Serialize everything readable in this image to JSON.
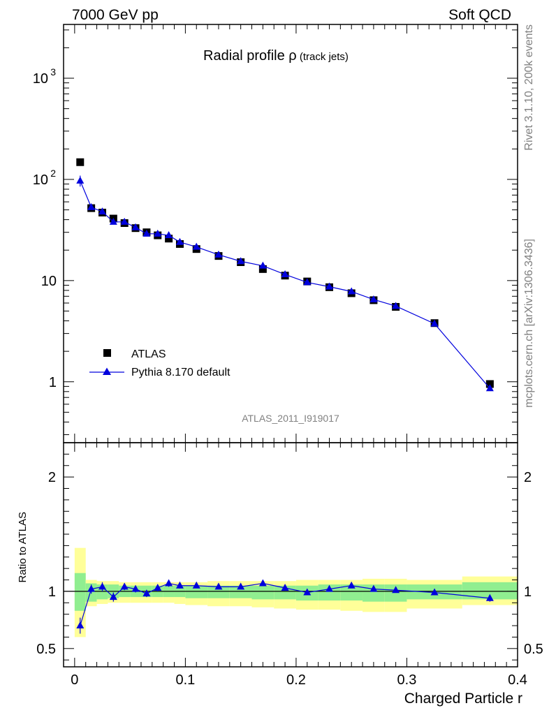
{
  "header": {
    "left": "7000 GeV pp",
    "right": "Soft QCD"
  },
  "side_labels": {
    "rivet": "Rivet 3.1.10,  200k events",
    "mcplots": "mcplots.cern.ch [arXiv:1306.3436]"
  },
  "chart_data": {
    "type": "scatter",
    "title_main": "Radial profile ",
    "title_rho": "ρ",
    "title_sub": " (track jets)",
    "analysis_id": "ATLAS_2011_I919017",
    "xlabel": "Charged Particle r",
    "ylabel_ratio": "Ratio to ATLAS",
    "x_ticks": [
      "0",
      "0.1",
      "0.2",
      "0.3",
      "0.4"
    ],
    "xlim": [
      -0.01,
      0.4
    ],
    "top": {
      "yscale": "log",
      "ylim": [
        0.25,
        3400
      ],
      "y_ticks": [
        {
          "value": 1,
          "label": "1"
        },
        {
          "value": 10,
          "label": "10"
        },
        {
          "value": 100,
          "label": "10",
          "exp": "2"
        },
        {
          "value": 1000,
          "label": "10",
          "exp": "3"
        }
      ]
    },
    "bottom": {
      "ylim": [
        0.34,
        2.3
      ],
      "y_ticks": [
        {
          "value": 0.5,
          "label": "0.5"
        },
        {
          "value": 1,
          "label": "1"
        },
        {
          "value": 2,
          "label": "2"
        }
      ]
    },
    "legend_position": "bottom-left",
    "x": [
      0.005,
      0.015,
      0.025,
      0.035,
      0.045,
      0.055,
      0.065,
      0.075,
      0.085,
      0.095,
      0.11,
      0.13,
      0.15,
      0.17,
      0.19,
      0.21,
      0.23,
      0.25,
      0.27,
      0.29,
      0.325,
      0.375
    ],
    "bins": [
      [
        0.0,
        0.01
      ],
      [
        0.01,
        0.02
      ],
      [
        0.02,
        0.03
      ],
      [
        0.03,
        0.04
      ],
      [
        0.04,
        0.05
      ],
      [
        0.05,
        0.06
      ],
      [
        0.06,
        0.07
      ],
      [
        0.07,
        0.08
      ],
      [
        0.08,
        0.09
      ],
      [
        0.09,
        0.1
      ],
      [
        0.1,
        0.12
      ],
      [
        0.12,
        0.14
      ],
      [
        0.14,
        0.16
      ],
      [
        0.16,
        0.18
      ],
      [
        0.18,
        0.2
      ],
      [
        0.2,
        0.22
      ],
      [
        0.22,
        0.24
      ],
      [
        0.24,
        0.26
      ],
      [
        0.26,
        0.28
      ],
      [
        0.28,
        0.3
      ],
      [
        0.3,
        0.35
      ],
      [
        0.35,
        0.4
      ]
    ],
    "series": [
      {
        "name": "ATLAS",
        "marker": "square",
        "color": "#000000",
        "values": [
          148,
          52,
          47,
          41,
          37,
          33,
          30,
          28,
          26,
          23,
          20.5,
          17.5,
          15.2,
          13,
          11.2,
          9.8,
          8.6,
          7.5,
          6.4,
          5.5,
          3.8,
          0.95
        ]
      },
      {
        "name": "Pythia 8.170 default",
        "marker": "triangle",
        "color": "#0000dd",
        "values": [
          97,
          53,
          48,
          38,
          38,
          33.5,
          29,
          29,
          28,
          24,
          21.5,
          18,
          15.5,
          14,
          11.5,
          9.6,
          8.7,
          7.8,
          6.5,
          5.6,
          3.75,
          0.86
        ],
        "yerr": [
          12,
          2,
          1.5,
          1.5,
          1.2,
          1,
          1,
          1,
          1,
          0.8,
          0.6,
          0.5,
          0.4,
          0.4,
          0.3,
          0.3,
          0.25,
          0.2,
          0.2,
          0.15,
          0.1,
          0.05
        ]
      }
    ],
    "ratio": {
      "values": [
        0.7,
        1.02,
        1.04,
        0.95,
        1.04,
        1.02,
        0.98,
        1.03,
        1.07,
        1.05,
        1.05,
        1.04,
        1.04,
        1.07,
        1.03,
        0.99,
        1.02,
        1.05,
        1.02,
        1.01,
        0.99,
        0.94
      ],
      "err": [
        0.07,
        0.04,
        0.04,
        0.04,
        0.03,
        0.03,
        0.03,
        0.03,
        0.03,
        0.025,
        0.02,
        0.02,
        0.02,
        0.02,
        0.02,
        0.02,
        0.02,
        0.02,
        0.02,
        0.02,
        0.015,
        0.03
      ],
      "band_inner": [
        [
          0.83,
          1.16
        ],
        [
          0.91,
          1.07
        ],
        [
          0.93,
          1.06
        ],
        [
          0.94,
          1.06
        ],
        [
          0.95,
          1.05
        ],
        [
          0.95,
          1.05
        ],
        [
          0.95,
          1.05
        ],
        [
          0.95,
          1.05
        ],
        [
          0.95,
          1.05
        ],
        [
          0.95,
          1.05
        ],
        [
          0.94,
          1.05
        ],
        [
          0.94,
          1.05
        ],
        [
          0.94,
          1.05
        ],
        [
          0.93,
          1.05
        ],
        [
          0.93,
          1.05
        ],
        [
          0.92,
          1.05
        ],
        [
          0.92,
          1.06
        ],
        [
          0.92,
          1.06
        ],
        [
          0.91,
          1.06
        ],
        [
          0.91,
          1.06
        ],
        [
          0.93,
          1.06
        ],
        [
          0.93,
          1.08
        ]
      ],
      "band_outer": [
        [
          0.6,
          1.38
        ],
        [
          0.87,
          1.1
        ],
        [
          0.89,
          1.09
        ],
        [
          0.9,
          1.09
        ],
        [
          0.9,
          1.08
        ],
        [
          0.9,
          1.08
        ],
        [
          0.9,
          1.08
        ],
        [
          0.9,
          1.08
        ],
        [
          0.9,
          1.08
        ],
        [
          0.89,
          1.08
        ],
        [
          0.88,
          1.08
        ],
        [
          0.87,
          1.09
        ],
        [
          0.87,
          1.09
        ],
        [
          0.86,
          1.09
        ],
        [
          0.85,
          1.09
        ],
        [
          0.84,
          1.1
        ],
        [
          0.84,
          1.1
        ],
        [
          0.83,
          1.1
        ],
        [
          0.82,
          1.11
        ],
        [
          0.82,
          1.11
        ],
        [
          0.85,
          1.1
        ],
        [
          0.88,
          1.13
        ]
      ]
    },
    "colors": {
      "band_inner": "#90ee90",
      "band_outer": "#ffff99",
      "reference_line": "#000000"
    }
  }
}
